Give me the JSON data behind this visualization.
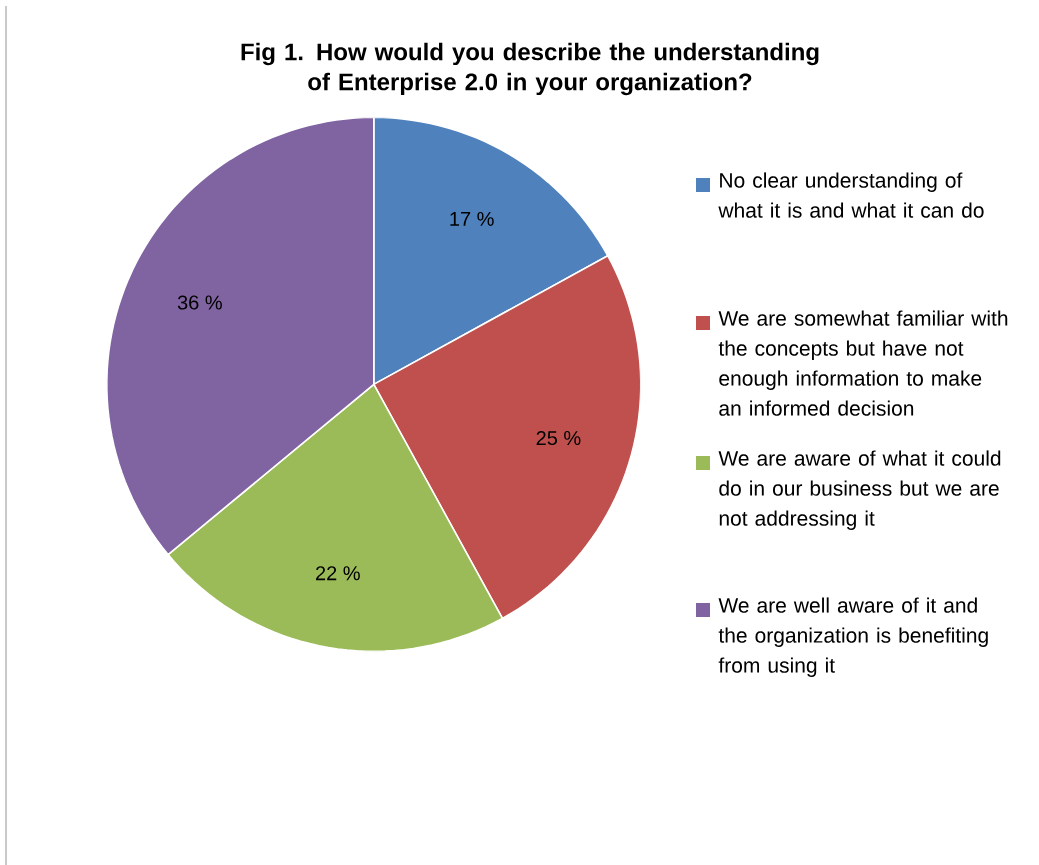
{
  "chart_data": {
    "type": "pie",
    "title": "Fig 1. How would you describe the understanding of Enterprise 2.0 in your organization?",
    "categories": [
      "No clear understanding of what it is and what it can do",
      "We are somewhat familiar with the concepts but have not enough information to make an informed decision",
      "We are aware of what it could do in our business but we are not addressing it",
      "We are well aware of it and the organization is benefiting from using it"
    ],
    "values": [
      17,
      25,
      22,
      36
    ],
    "colors": [
      "#4f81bd",
      "#c0504d",
      "#9bbb59",
      "#8064a2"
    ],
    "value_labels": [
      "17 %",
      "25 %",
      "22 %",
      "36 %"
    ],
    "legend": "right"
  }
}
